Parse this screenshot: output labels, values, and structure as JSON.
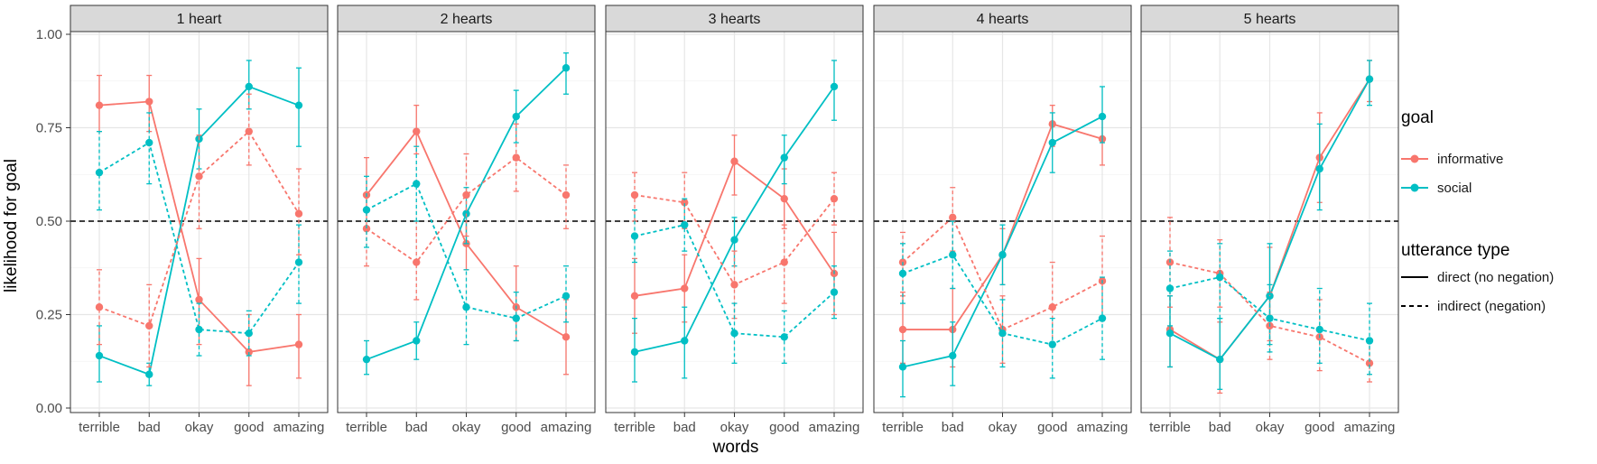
{
  "chart_data": {
    "type": "line",
    "xlabel": "words",
    "ylabel": "likelihood for goal",
    "ylim": [
      0,
      1
    ],
    "yticks": [
      "0.00",
      "0.25",
      "0.50",
      "0.75",
      "1.00"
    ],
    "categories": [
      "terrible",
      "bad",
      "okay",
      "good",
      "amazing"
    ],
    "reference_line": 0.5,
    "grid": true,
    "colors": {
      "informative": "#F8766D",
      "social": "#00BFC4"
    },
    "legend": {
      "placement": "right",
      "goal_title": "goal",
      "goal_items": [
        "informative",
        "social"
      ],
      "utterance_title": "utterance type",
      "utterance_items": [
        "direct (no negation)",
        "indirect (negation)"
      ]
    },
    "panels": [
      {
        "title": "1 heart",
        "series": [
          {
            "goal": "informative",
            "utterance": "direct",
            "values": [
              0.81,
              0.82,
              0.29,
              0.15,
              0.17
            ],
            "ci_low": [
              0.74,
              0.74,
              0.17,
              0.06,
              0.08
            ],
            "ci_high": [
              0.89,
              0.89,
              0.4,
              0.25,
              0.25
            ]
          },
          {
            "goal": "social",
            "utterance": "direct",
            "values": [
              0.14,
              0.09,
              0.72,
              0.86,
              0.81
            ],
            "ci_low": [
              0.07,
              0.06,
              0.64,
              0.8,
              0.7
            ],
            "ci_high": [
              0.22,
              0.12,
              0.8,
              0.93,
              0.91
            ]
          },
          {
            "goal": "informative",
            "utterance": "indirect",
            "values": [
              0.27,
              0.22,
              0.62,
              0.74,
              0.52
            ],
            "ci_low": [
              0.17,
              0.11,
              0.48,
              0.65,
              0.41
            ],
            "ci_high": [
              0.37,
              0.33,
              0.73,
              0.84,
              0.64
            ]
          },
          {
            "goal": "social",
            "utterance": "indirect",
            "values": [
              0.63,
              0.71,
              0.21,
              0.2,
              0.39
            ],
            "ci_low": [
              0.53,
              0.6,
              0.14,
              0.14,
              0.28
            ],
            "ci_high": [
              0.74,
              0.79,
              0.28,
              0.26,
              0.49
            ]
          }
        ]
      },
      {
        "title": "2 hearts",
        "series": [
          {
            "goal": "informative",
            "utterance": "direct",
            "values": [
              0.57,
              0.74,
              0.44,
              0.27,
              0.19
            ],
            "ci_low": [
              0.48,
              0.68,
              0.37,
              0.18,
              0.09
            ],
            "ci_high": [
              0.67,
              0.81,
              0.52,
              0.38,
              0.29
            ]
          },
          {
            "goal": "social",
            "utterance": "direct",
            "values": [
              0.13,
              0.18,
              0.52,
              0.78,
              0.91
            ],
            "ci_low": [
              0.09,
              0.13,
              0.44,
              0.71,
              0.84
            ],
            "ci_high": [
              0.18,
              0.23,
              0.59,
              0.85,
              0.95
            ]
          },
          {
            "goal": "informative",
            "utterance": "indirect",
            "values": [
              0.48,
              0.39,
              0.57,
              0.67,
              0.57
            ],
            "ci_low": [
              0.38,
              0.29,
              0.46,
              0.58,
              0.48
            ],
            "ci_high": [
              0.57,
              0.5,
              0.68,
              0.76,
              0.65
            ]
          },
          {
            "goal": "social",
            "utterance": "indirect",
            "values": [
              0.53,
              0.6,
              0.27,
              0.24,
              0.3
            ],
            "ci_low": [
              0.43,
              0.5,
              0.17,
              0.18,
              0.23
            ],
            "ci_high": [
              0.62,
              0.7,
              0.37,
              0.31,
              0.38
            ]
          }
        ]
      },
      {
        "title": "3 hearts",
        "series": [
          {
            "goal": "informative",
            "utterance": "direct",
            "values": [
              0.3,
              0.32,
              0.66,
              0.56,
              0.36
            ],
            "ci_low": [
              0.2,
              0.23,
              0.57,
              0.48,
              0.25
            ],
            "ci_high": [
              0.4,
              0.41,
              0.73,
              0.64,
              0.47
            ]
          },
          {
            "goal": "social",
            "utterance": "direct",
            "values": [
              0.15,
              0.18,
              0.45,
              0.67,
              0.86
            ],
            "ci_low": [
              0.07,
              0.08,
              0.38,
              0.6,
              0.77
            ],
            "ci_high": [
              0.24,
              0.27,
              0.51,
              0.73,
              0.93
            ]
          },
          {
            "goal": "informative",
            "utterance": "indirect",
            "values": [
              0.57,
              0.55,
              0.33,
              0.39,
              0.56
            ],
            "ci_low": [
              0.5,
              0.48,
              0.24,
              0.28,
              0.49
            ],
            "ci_high": [
              0.63,
              0.63,
              0.42,
              0.49,
              0.63
            ]
          },
          {
            "goal": "social",
            "utterance": "indirect",
            "values": [
              0.46,
              0.49,
              0.2,
              0.19,
              0.31
            ],
            "ci_low": [
              0.39,
              0.42,
              0.12,
              0.12,
              0.24
            ],
            "ci_high": [
              0.53,
              0.56,
              0.28,
              0.26,
              0.38
            ]
          }
        ]
      },
      {
        "title": "4 hearts",
        "series": [
          {
            "goal": "informative",
            "utterance": "direct",
            "values": [
              0.21,
              0.21,
              0.41,
              0.76,
              0.72
            ],
            "ci_low": [
              0.12,
              0.11,
              0.33,
              0.7,
              0.65
            ],
            "ci_high": [
              0.31,
              0.32,
              0.48,
              0.81,
              0.78
            ]
          },
          {
            "goal": "social",
            "utterance": "direct",
            "values": [
              0.11,
              0.14,
              0.41,
              0.71,
              0.78
            ],
            "ci_low": [
              0.03,
              0.06,
              0.33,
              0.63,
              0.71
            ],
            "ci_high": [
              0.18,
              0.23,
              0.49,
              0.79,
              0.86
            ]
          },
          {
            "goal": "informative",
            "utterance": "indirect",
            "values": [
              0.39,
              0.51,
              0.21,
              0.27,
              0.34
            ],
            "ci_low": [
              0.3,
              0.42,
              0.12,
              0.17,
              0.24
            ],
            "ci_high": [
              0.47,
              0.59,
              0.3,
              0.39,
              0.46
            ]
          },
          {
            "goal": "social",
            "utterance": "indirect",
            "values": [
              0.36,
              0.41,
              0.2,
              0.17,
              0.24
            ],
            "ci_low": [
              0.28,
              0.32,
              0.11,
              0.08,
              0.13
            ],
            "ci_high": [
              0.44,
              0.5,
              0.29,
              0.24,
              0.35
            ]
          }
        ]
      },
      {
        "title": "5 hearts",
        "series": [
          {
            "goal": "informative",
            "utterance": "direct",
            "values": [
              0.21,
              0.13,
              0.3,
              0.67,
              0.88
            ],
            "ci_low": [
              0.11,
              0.04,
              0.18,
              0.55,
              0.82
            ],
            "ci_high": [
              0.3,
              0.23,
              0.43,
              0.79,
              0.93
            ]
          },
          {
            "goal": "social",
            "utterance": "direct",
            "values": [
              0.2,
              0.13,
              0.3,
              0.64,
              0.88
            ],
            "ci_low": [
              0.11,
              0.05,
              0.17,
              0.53,
              0.81
            ],
            "ci_high": [
              0.3,
              0.24,
              0.44,
              0.76,
              0.93
            ]
          },
          {
            "goal": "informative",
            "utterance": "indirect",
            "values": [
              0.39,
              0.36,
              0.22,
              0.19,
              0.12
            ],
            "ci_low": [
              0.27,
              0.27,
              0.13,
              0.1,
              0.07
            ],
            "ci_high": [
              0.51,
              0.45,
              0.31,
              0.29,
              0.18
            ]
          },
          {
            "goal": "social",
            "utterance": "indirect",
            "values": [
              0.32,
              0.35,
              0.24,
              0.21,
              0.18
            ],
            "ci_low": [
              0.22,
              0.24,
              0.15,
              0.12,
              0.09
            ],
            "ci_high": [
              0.42,
              0.44,
              0.33,
              0.32,
              0.28
            ]
          }
        ]
      }
    ]
  }
}
